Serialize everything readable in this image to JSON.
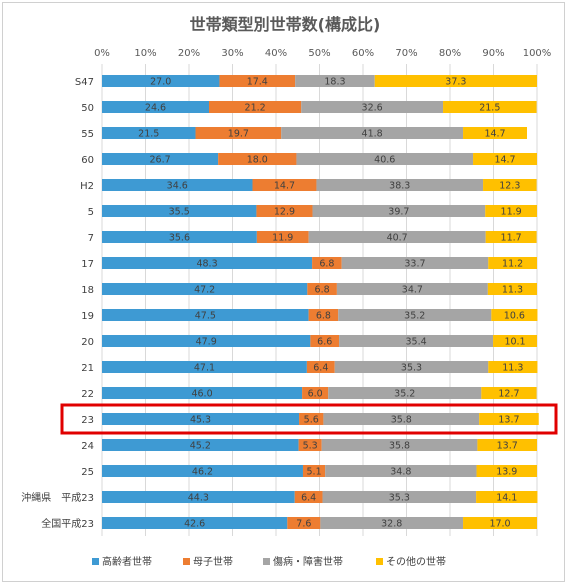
{
  "chart_data": {
    "type": "bar",
    "orientation": "horizontal",
    "stacked": "percent",
    "title": "世帯類型別世帯数(構成比)",
    "x_ticks": [
      "0%",
      "10%",
      "20%",
      "30%",
      "40%",
      "50%",
      "60%",
      "70%",
      "80%",
      "90%",
      "100%"
    ],
    "xlim": [
      0,
      100
    ],
    "categories": [
      "S47",
      "50",
      "55",
      "60",
      "H2",
      "5",
      "7",
      "17",
      "18",
      "19",
      "20",
      "21",
      "22",
      "23",
      "24",
      "25",
      "沖縄県　平成23",
      "全国平成23"
    ],
    "series": [
      {
        "name": "高齢者世帯",
        "color": "#3e9ad3",
        "values": [
          27.0,
          24.6,
          21.5,
          26.7,
          34.6,
          35.5,
          35.6,
          48.3,
          47.2,
          47.5,
          47.9,
          47.1,
          46.0,
          45.3,
          45.2,
          46.2,
          44.3,
          42.6
        ]
      },
      {
        "name": "母子世帯",
        "color": "#ed7d31",
        "values": [
          17.4,
          21.2,
          19.7,
          18.0,
          14.7,
          12.9,
          11.9,
          6.8,
          6.8,
          6.8,
          6.6,
          6.4,
          6.0,
          5.6,
          5.3,
          5.1,
          6.4,
          7.6
        ]
      },
      {
        "name": "傷病・障害世帯",
        "color": "#a5a5a5",
        "values": [
          18.3,
          32.6,
          41.8,
          40.6,
          38.3,
          39.7,
          40.7,
          33.7,
          34.7,
          35.2,
          35.4,
          35.3,
          35.2,
          35.8,
          35.8,
          34.8,
          35.3,
          32.8
        ]
      },
      {
        "name": "その他の世帯",
        "color": "#ffc000",
        "values": [
          37.3,
          21.5,
          14.7,
          14.7,
          12.3,
          11.9,
          11.7,
          11.2,
          11.3,
          10.6,
          10.1,
          11.3,
          12.7,
          13.7,
          13.7,
          13.9,
          14.1,
          17.0
        ]
      }
    ],
    "highlight_category": "23",
    "highlight_color": "#e00000",
    "legend_position": "bottom",
    "grid": true
  }
}
